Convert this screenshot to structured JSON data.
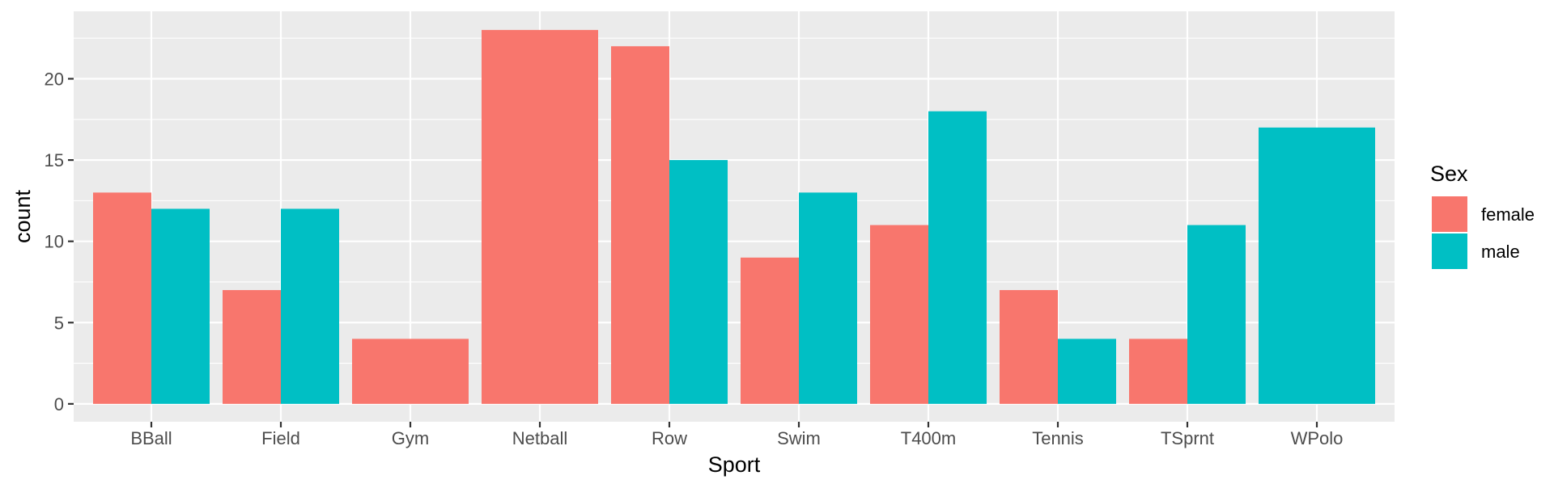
{
  "chart_data": {
    "type": "bar",
    "title": "",
    "xlabel": "Sport",
    "ylabel": "count",
    "categories": [
      "BBall",
      "Field",
      "Gym",
      "Netball",
      "Row",
      "Swim",
      "T400m",
      "Tennis",
      "TSprnt",
      "WPolo"
    ],
    "series": [
      {
        "name": "female",
        "color": "#F8766D",
        "values": [
          13,
          7,
          4,
          23,
          22,
          9,
          11,
          7,
          4,
          null
        ]
      },
      {
        "name": "male",
        "color": "#00BFC4",
        "values": [
          12,
          12,
          null,
          null,
          15,
          13,
          18,
          4,
          11,
          17
        ]
      }
    ],
    "ylim": [
      0,
      24
    ],
    "y_ticks": [
      0,
      5,
      10,
      15,
      20
    ],
    "grid": true,
    "legend": {
      "title": "Sex",
      "position": "right"
    },
    "panel_background": "#EBEBEB",
    "grid_color": "#FFFFFF"
  }
}
